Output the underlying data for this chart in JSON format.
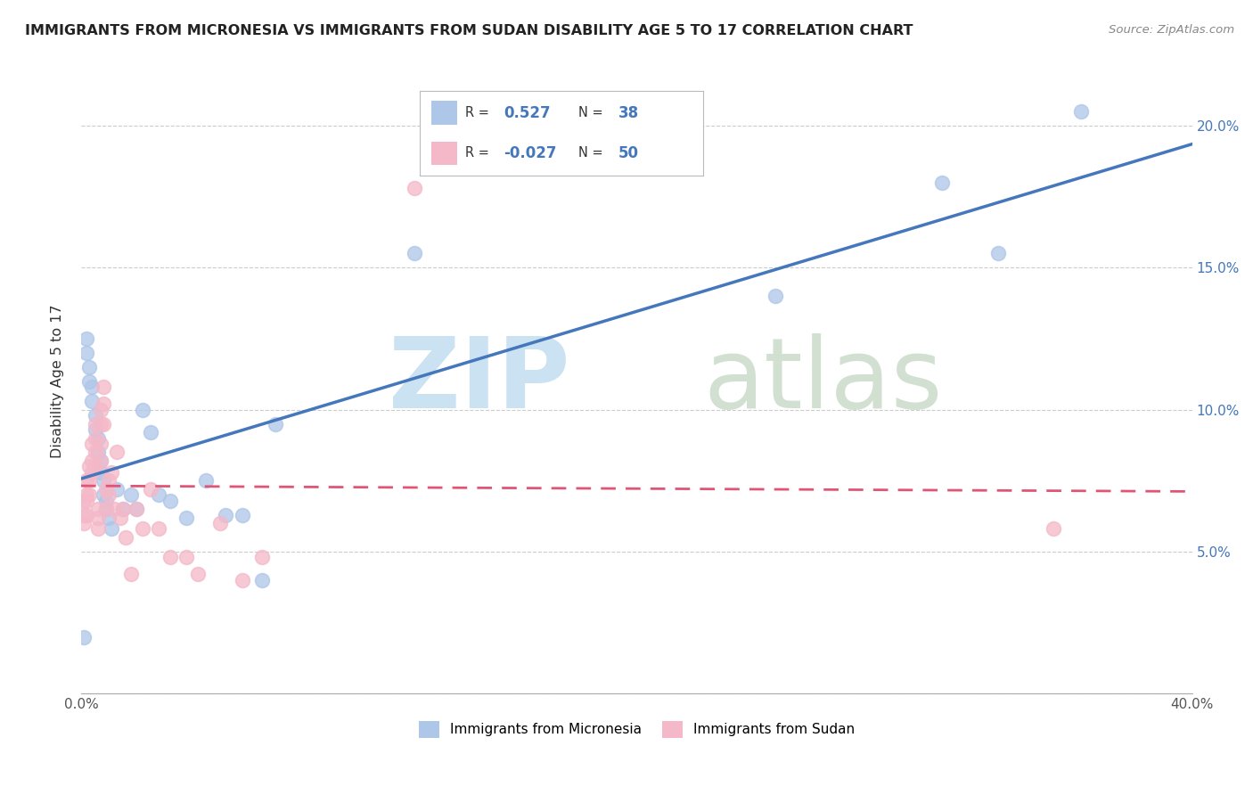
{
  "title": "IMMIGRANTS FROM MICRONESIA VS IMMIGRANTS FROM SUDAN DISABILITY AGE 5 TO 17 CORRELATION CHART",
  "source": "Source: ZipAtlas.com",
  "ylabel_label": "Disability Age 5 to 17",
  "x_min": 0.0,
  "x_max": 0.4,
  "y_min": 0.0,
  "y_max": 0.22,
  "x_ticks": [
    0.0,
    0.05,
    0.1,
    0.15,
    0.2,
    0.25,
    0.3,
    0.35,
    0.4
  ],
  "y_ticks": [
    0.0,
    0.05,
    0.1,
    0.15,
    0.2
  ],
  "micronesia_R": 0.527,
  "micronesia_N": 38,
  "sudan_R": -0.027,
  "sudan_N": 50,
  "micronesia_color": "#aec6e8",
  "micronesia_line_color": "#4477bb",
  "sudan_color": "#f4b8c8",
  "sudan_line_color": "#e05575",
  "legend_R1": "0.527",
  "legend_N1": "38",
  "legend_R2": "-0.027",
  "legend_N2": "50",
  "micronesia_x": [
    0.001,
    0.002,
    0.002,
    0.003,
    0.003,
    0.004,
    0.004,
    0.005,
    0.005,
    0.006,
    0.006,
    0.007,
    0.007,
    0.008,
    0.008,
    0.009,
    0.009,
    0.01,
    0.011,
    0.013,
    0.015,
    0.018,
    0.02,
    0.022,
    0.025,
    0.028,
    0.032,
    0.038,
    0.045,
    0.052,
    0.058,
    0.065,
    0.07,
    0.12,
    0.25,
    0.31,
    0.33,
    0.36
  ],
  "micronesia_y": [
    0.02,
    0.125,
    0.12,
    0.115,
    0.11,
    0.108,
    0.103,
    0.098,
    0.093,
    0.09,
    0.085,
    0.082,
    0.078,
    0.075,
    0.07,
    0.068,
    0.065,
    0.062,
    0.058,
    0.072,
    0.065,
    0.07,
    0.065,
    0.1,
    0.092,
    0.07,
    0.068,
    0.062,
    0.075,
    0.063,
    0.063,
    0.04,
    0.095,
    0.155,
    0.14,
    0.18,
    0.155,
    0.205
  ],
  "sudan_x": [
    0.001,
    0.001,
    0.001,
    0.002,
    0.002,
    0.002,
    0.002,
    0.003,
    0.003,
    0.003,
    0.004,
    0.004,
    0.004,
    0.005,
    0.005,
    0.005,
    0.005,
    0.006,
    0.006,
    0.006,
    0.007,
    0.007,
    0.007,
    0.007,
    0.008,
    0.008,
    0.008,
    0.009,
    0.009,
    0.01,
    0.01,
    0.011,
    0.012,
    0.013,
    0.014,
    0.015,
    0.016,
    0.018,
    0.02,
    0.022,
    0.025,
    0.028,
    0.032,
    0.038,
    0.042,
    0.05,
    0.058,
    0.065,
    0.12,
    0.35
  ],
  "sudan_y": [
    0.068,
    0.063,
    0.06,
    0.075,
    0.07,
    0.068,
    0.063,
    0.08,
    0.075,
    0.07,
    0.088,
    0.082,
    0.078,
    0.095,
    0.09,
    0.085,
    0.08,
    0.065,
    0.062,
    0.058,
    0.1,
    0.095,
    0.088,
    0.082,
    0.108,
    0.102,
    0.095,
    0.072,
    0.065,
    0.075,
    0.07,
    0.078,
    0.065,
    0.085,
    0.062,
    0.065,
    0.055,
    0.042,
    0.065,
    0.058,
    0.072,
    0.058,
    0.048,
    0.048,
    0.042,
    0.06,
    0.04,
    0.048,
    0.178,
    0.058
  ]
}
